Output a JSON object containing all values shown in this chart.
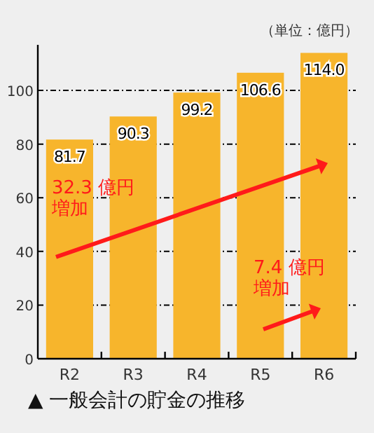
{
  "chart_data": {
    "type": "bar",
    "title": "▲ 一般会計の貯金の推移",
    "ylabel": "（単位：億円）",
    "categories": [
      "R2",
      "R3",
      "R4",
      "R5",
      "R6"
    ],
    "values": [
      81.7,
      90.3,
      99.2,
      106.6,
      114.0
    ],
    "value_labels": [
      "81.7",
      "90.3",
      "99.2",
      "106.6",
      "114.0"
    ],
    "color": "#f7b52c",
    "ylim": [
      0,
      117
    ],
    "yticks": [
      0,
      20,
      40,
      60,
      80,
      100
    ],
    "grid": "y",
    "annotations": [
      "32.3 億円増加",
      "7.4 億円増加"
    ]
  }
}
